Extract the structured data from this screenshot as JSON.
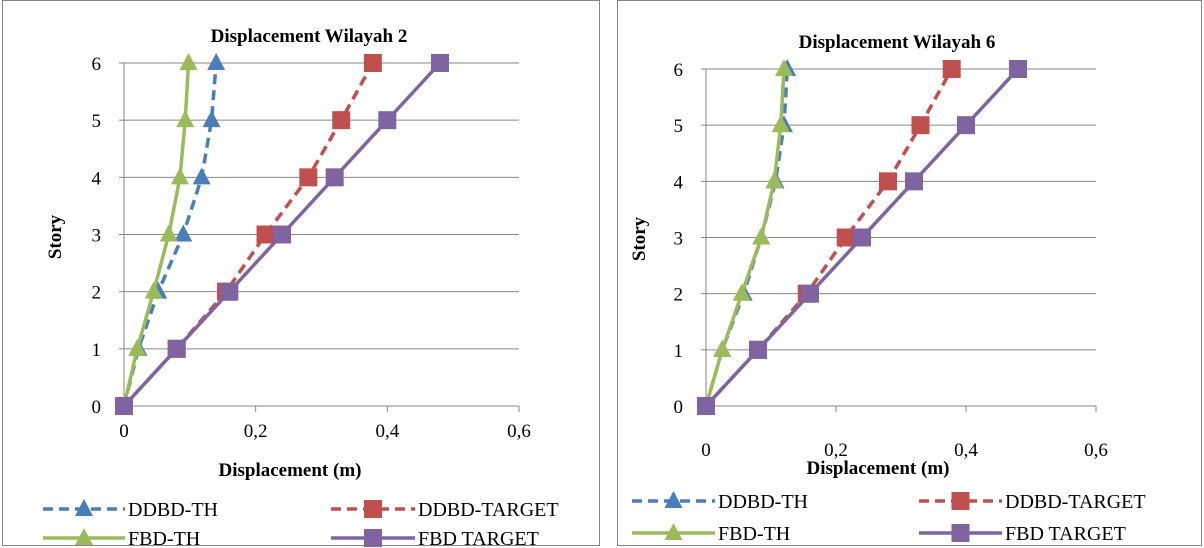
{
  "chart_data": [
    {
      "type": "line",
      "title": "Displacement Wilayah 2",
      "xlabel": "Displacement (m)",
      "ylabel": "Story",
      "xlim": [
        0,
        0.6
      ],
      "ylim": [
        0,
        6
      ],
      "x_ticks": [
        "0",
        "0,2",
        "0,4",
        "0,6"
      ],
      "y_ticks": [
        "0",
        "1",
        "2",
        "3",
        "4",
        "5",
        "6"
      ],
      "grid": "horizontal",
      "legend": "bottom",
      "series": [
        {
          "name": "DDBD-TH",
          "color": "#4a7ebb",
          "dash": "dashed",
          "marker": "triangle",
          "x": [
            0,
            0.022,
            0.052,
            0.09,
            0.118,
            0.133,
            0.14
          ],
          "y": [
            0,
            1,
            2,
            3,
            4,
            5,
            6
          ]
        },
        {
          "name": "DDBD-TARGET",
          "color": "#c0504d",
          "dash": "dashed",
          "marker": "square",
          "x": [
            0,
            0.08,
            0.155,
            0.215,
            0.28,
            0.33,
            0.378
          ],
          "y": [
            0,
            1,
            2,
            3,
            4,
            5,
            6
          ]
        },
        {
          "name": "FBD-TH",
          "color": "#9bbb59",
          "dash": "solid",
          "marker": "triangle",
          "x": [
            0,
            0.02,
            0.045,
            0.068,
            0.085,
            0.093,
            0.098
          ],
          "y": [
            0,
            1,
            2,
            3,
            4,
            5,
            6
          ]
        },
        {
          "name": "FBD TARGET",
          "color": "#8064a2",
          "dash": "solid",
          "marker": "square",
          "x": [
            0,
            0.08,
            0.16,
            0.24,
            0.32,
            0.4,
            0.48
          ],
          "y": [
            0,
            1,
            2,
            3,
            4,
            5,
            6
          ]
        }
      ]
    },
    {
      "type": "line",
      "title": "Displacement Wilayah 6",
      "xlabel": "Displacement (m)",
      "ylabel": "Story",
      "xlim": [
        0,
        0.6
      ],
      "ylim": [
        0,
        6
      ],
      "x_ticks": [
        "0",
        "0,2",
        "0,4",
        "0,6"
      ],
      "y_ticks": [
        "0",
        "1",
        "2",
        "3",
        "4",
        "5",
        "6"
      ],
      "grid": "horizontal",
      "legend": "bottom",
      "series": [
        {
          "name": "DDBD-TH",
          "color": "#4a7ebb",
          "dash": "dashed",
          "marker": "triangle",
          "x": [
            0,
            0.025,
            0.058,
            0.085,
            0.107,
            0.12,
            0.125
          ],
          "y": [
            0,
            1,
            2,
            3,
            4,
            5,
            6
          ]
        },
        {
          "name": "DDBD-TARGET",
          "color": "#c0504d",
          "dash": "dashed",
          "marker": "square",
          "x": [
            0,
            0.08,
            0.155,
            0.215,
            0.28,
            0.33,
            0.378
          ],
          "y": [
            0,
            1,
            2,
            3,
            4,
            5,
            6
          ]
        },
        {
          "name": "FBD-TH",
          "color": "#9bbb59",
          "dash": "solid",
          "marker": "triangle",
          "x": [
            0,
            0.025,
            0.055,
            0.085,
            0.105,
            0.115,
            0.12
          ],
          "y": [
            0,
            1,
            2,
            3,
            4,
            5,
            6
          ]
        },
        {
          "name": "FBD TARGET",
          "color": "#8064a2",
          "dash": "solid",
          "marker": "square",
          "x": [
            0,
            0.08,
            0.16,
            0.24,
            0.32,
            0.4,
            0.48
          ],
          "y": [
            0,
            1,
            2,
            3,
            4,
            5,
            6
          ]
        }
      ]
    }
  ]
}
